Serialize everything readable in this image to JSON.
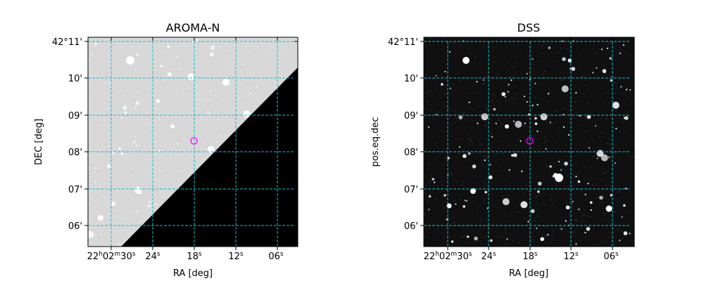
{
  "chart_data": [
    {
      "type": "image",
      "title": "AROMA-N",
      "xlabel": "RA [deg]",
      "ylabel": "DEC [deg]",
      "x_ticks": [
        "22h02m30s",
        "24s",
        "18s",
        "12s",
        "06s"
      ],
      "y_ticks": [
        "42°11'",
        "10'",
        "09'",
        "08'",
        "07'",
        "06'"
      ],
      "grid": true,
      "grid_color": "#17becf",
      "marker": {
        "shape": "circle",
        "color": "#ff00ff"
      },
      "image_style": "light-gray sky with black no-coverage wedge in lower right"
    },
    {
      "type": "image",
      "title": "DSS",
      "xlabel": "RA [deg]",
      "ylabel": "pos.eq.dec",
      "x_ticks": [
        "22h02m30s",
        "24s",
        "18s",
        "12s",
        "06s"
      ],
      "y_ticks": [
        "42°11'",
        "10'",
        "09'",
        "08'",
        "07'",
        "06'"
      ],
      "grid": true,
      "grid_color": "#17becf",
      "marker": {
        "shape": "circle",
        "color": "#ff00ff"
      },
      "image_style": "black sky with white stars"
    }
  ]
}
